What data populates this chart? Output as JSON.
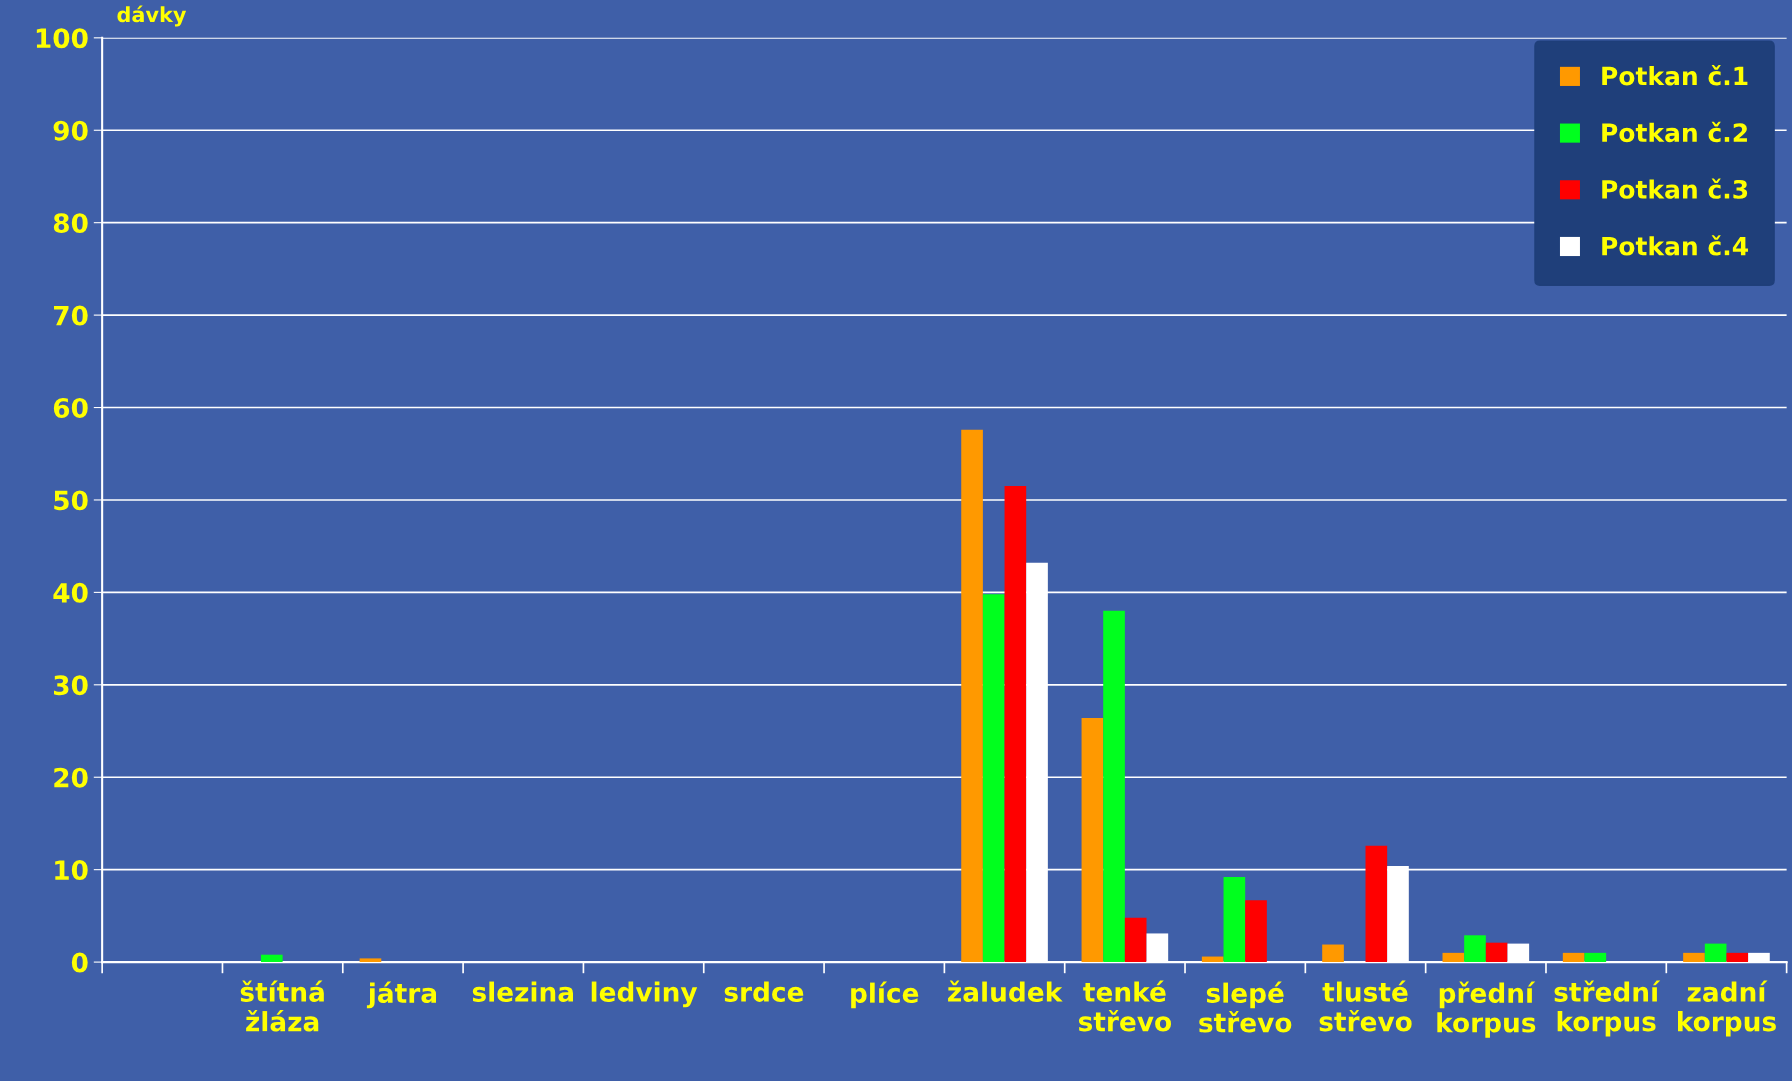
{
  "chart_data": {
    "type": "bar",
    "ylabel": "dávky",
    "categories": [
      null,
      "štítná\nžláza",
      "játra",
      "slezina",
      "ledviny",
      "srdce",
      "plíce",
      "žaludek",
      "tenké\nstřevo",
      "slepé\nstřevo",
      "tlusté\nstřevo",
      "přední\nkorpus",
      "střední\nkorpus",
      "zadní\nkorpus"
    ],
    "series": [
      {
        "name": "Potkan č.1",
        "color": "#ff9900",
        "values": [
          0,
          0,
          0.4,
          0,
          0,
          0,
          0,
          57.6,
          26.4,
          0.6,
          1.9,
          1.0,
          1.0,
          1.0
        ]
      },
      {
        "name": "Potkan č.2",
        "color": "#00ff1e",
        "values": [
          0,
          0.8,
          0,
          0,
          0,
          0,
          0,
          39.8,
          38.0,
          9.2,
          0,
          2.9,
          1.0,
          2.0
        ]
      },
      {
        "name": "Potkan č.3",
        "color": "#ff0000",
        "values": [
          0,
          0,
          0,
          0,
          0,
          0,
          0,
          51.5,
          4.8,
          6.7,
          12.6,
          2.1,
          0,
          1.0
        ]
      },
      {
        "name": "Potkan č.4",
        "color": "#ffffff",
        "values": [
          0,
          0,
          0,
          0,
          0,
          0,
          0,
          43.2,
          3.1,
          0,
          10.4,
          2.0,
          0,
          1.0
        ]
      }
    ],
    "ylim": [
      0,
      100
    ],
    "yticks": [
      0,
      10,
      20,
      30,
      40,
      50,
      60,
      70,
      80,
      90,
      100
    ],
    "grid": "y",
    "legend": "top right"
  }
}
